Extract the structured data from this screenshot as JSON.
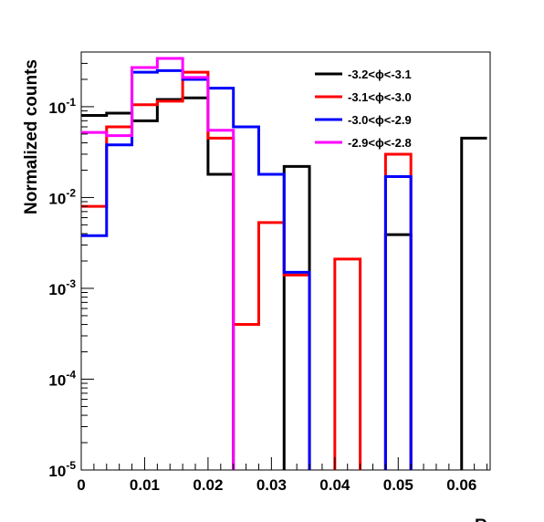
{
  "chart_data": {
    "type": "line",
    "title": "",
    "xlabel": "R",
    "ylabel": "Normalized counts",
    "xlim": [
      0,
      0.0645
    ],
    "ylim": [
      1e-05,
      0.4
    ],
    "yscale": "log",
    "grid": false,
    "legend_position": "top-right",
    "x_ticks": [
      "0",
      "0.01",
      "0.02",
      "0.03",
      "0.04",
      "0.05",
      "0.06"
    ],
    "x_tick_values": [
      0,
      0.01,
      0.02,
      0.03,
      0.04,
      0.05,
      0.06
    ],
    "y_ticks": [
      {
        "value": 1e-05,
        "base": "10",
        "exp": "-5"
      },
      {
        "value": 0.0001,
        "base": "10",
        "exp": "-4"
      },
      {
        "value": 0.001,
        "base": "10",
        "exp": "-3"
      },
      {
        "value": 0.01,
        "base": "10",
        "exp": "-2"
      },
      {
        "value": 0.1,
        "base": "10",
        "exp": "-1"
      }
    ],
    "bin_edges": [
      0,
      0.004,
      0.008,
      0.012,
      0.016,
      0.02,
      0.024,
      0.028,
      0.032,
      0.036,
      0.04,
      0.044,
      0.048,
      0.052,
      0.056,
      0.06,
      0.064
    ],
    "series": [
      {
        "name": "-3.2<ϕ<-3.1",
        "color": "#000000",
        "values": [
          0.08,
          0.085,
          0.07,
          0.12,
          0.125,
          0.018,
          0,
          0,
          0.022,
          0,
          0,
          0,
          0.0039,
          0,
          0,
          0.045
        ]
      },
      {
        "name": "-3.1<ϕ<-3.0",
        "color": "#ff0000",
        "values": [
          0.008,
          0.06,
          0.105,
          0.115,
          0.24,
          0.045,
          0.0004,
          0.0053,
          0.0014,
          0,
          0.0021,
          0,
          0.03,
          0,
          0,
          0
        ]
      },
      {
        "name": "-3.0<ϕ<-2.9",
        "color": "#0000ff",
        "values": [
          0.0038,
          0.038,
          0.24,
          0.25,
          0.2,
          0.16,
          0.06,
          0.018,
          0.0015,
          0,
          0,
          0,
          0.017,
          0,
          0,
          0
        ]
      },
      {
        "name": "-2.9<ϕ<-2.8",
        "color": "#ff00ff",
        "values": [
          0.052,
          0.048,
          0.27,
          0.34,
          0.21,
          0.055,
          0,
          0,
          0,
          0,
          0,
          0,
          0,
          0,
          0,
          0
        ]
      }
    ]
  }
}
